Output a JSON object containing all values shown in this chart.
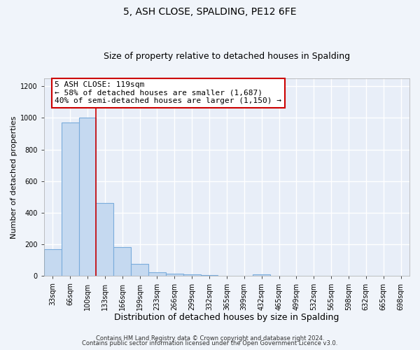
{
  "title": "5, ASH CLOSE, SPALDING, PE12 6FE",
  "subtitle": "Size of property relative to detached houses in Spalding",
  "xlabel": "Distribution of detached houses by size in Spalding",
  "ylabel": "Number of detached properties",
  "categories": [
    "33sqm",
    "66sqm",
    "100sqm",
    "133sqm",
    "166sqm",
    "199sqm",
    "233sqm",
    "266sqm",
    "299sqm",
    "332sqm",
    "365sqm",
    "399sqm",
    "432sqm",
    "465sqm",
    "499sqm",
    "532sqm",
    "565sqm",
    "598sqm",
    "632sqm",
    "665sqm",
    "698sqm"
  ],
  "values": [
    170,
    970,
    1000,
    460,
    185,
    75,
    25,
    15,
    10,
    8,
    0,
    0,
    10,
    0,
    0,
    0,
    0,
    0,
    0,
    0,
    0
  ],
  "bar_color": "#c5d9f0",
  "bar_edge_color": "#7aacdc",
  "red_line_label": "5 ASH CLOSE: 119sqm",
  "annotation_line1": "← 58% of detached houses are smaller (1,687)",
  "annotation_line2": "40% of semi-detached houses are larger (1,150) →",
  "annotation_box_color": "#ffffff",
  "annotation_box_edge": "#cc0000",
  "ylim": [
    0,
    1250
  ],
  "yticks": [
    0,
    200,
    400,
    600,
    800,
    1000,
    1200
  ],
  "footer_line1": "Contains HM Land Registry data © Crown copyright and database right 2024.",
  "footer_line2": "Contains public sector information licensed under the Open Government Licence v3.0.",
  "fig_bg_color": "#f0f4fa",
  "axes_bg_color": "#e8eef8",
  "grid_color": "#ffffff",
  "title_fontsize": 10,
  "subtitle_fontsize": 9,
  "xlabel_fontsize": 9,
  "ylabel_fontsize": 8,
  "tick_fontsize": 7,
  "annotation_fontsize": 8,
  "footer_fontsize": 6
}
